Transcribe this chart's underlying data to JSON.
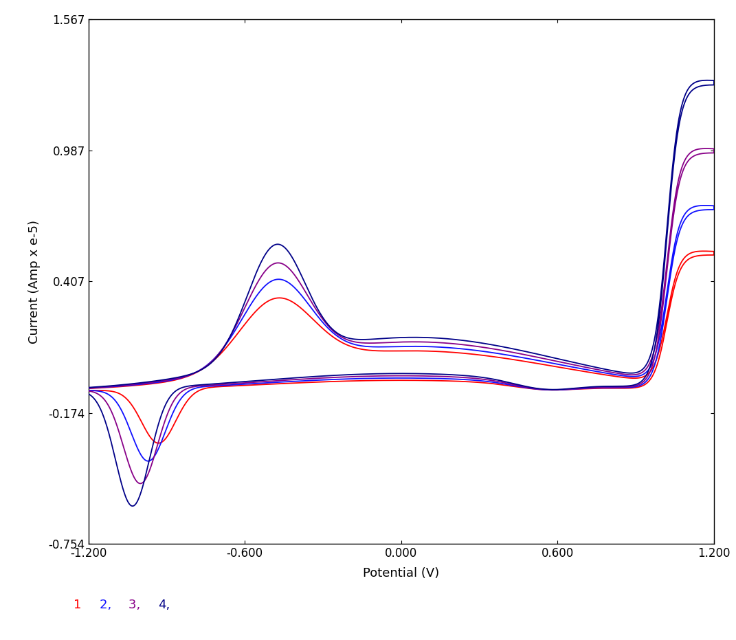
{
  "title": "",
  "xlabel": "Potential (V)",
  "ylabel": "Current (Amp x e-5)",
  "xlim": [
    -1.2,
    1.2
  ],
  "ylim": [
    -0.754,
    1.567
  ],
  "yticks": [
    -0.754,
    -0.174,
    0.407,
    0.987,
    1.567
  ],
  "xticks": [
    -1.2,
    -0.6,
    0.0,
    0.6,
    1.2
  ],
  "background_color": "#ffffff",
  "colors": {
    "1": "#ff0000",
    "2": "#1010ff",
    "3": "#880088",
    "4": "#000088"
  },
  "legend_colors": [
    "#ff0000",
    "#1010ff",
    "#880088",
    "#000088"
  ],
  "font_size": 13,
  "tick_font_size": 12,
  "linewidth": 1.3
}
